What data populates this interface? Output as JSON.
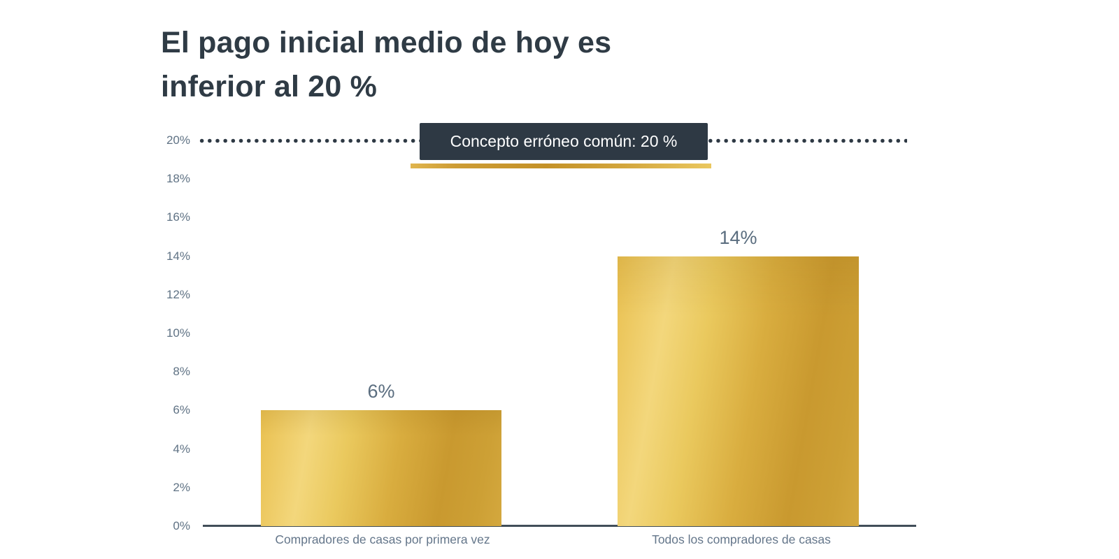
{
  "title": {
    "line1": "El pago inicial medio de hoy es",
    "line2": "inferior al 20 %"
  },
  "annotation": {
    "label": "Concepto erróneo común: 20 %"
  },
  "chart_data": {
    "type": "bar",
    "title": "El pago inicial medio de hoy es inferior al 20 %",
    "categories": [
      "Compradores de casas por primera vez",
      "Todos los compradores de casas"
    ],
    "values": [
      6,
      14
    ],
    "value_labels": [
      "6%",
      "14%"
    ],
    "xlabel": "",
    "ylabel": "",
    "ylim": [
      0,
      20
    ],
    "ytick_step": 2,
    "yticks": [
      "0%",
      "2%",
      "4%",
      "6%",
      "8%",
      "10%",
      "12%",
      "14%",
      "16%",
      "18%",
      "20%"
    ],
    "grid": false,
    "legend": "none",
    "reference_line": {
      "value": 20,
      "style": "dotted",
      "label": "Concepto erróneo común: 20 %"
    },
    "colors": {
      "bar_gold_light": "#f3d77c",
      "bar_gold_dark": "#c9992f",
      "title_text": "#2f3b45",
      "axis_text": "#5f7284",
      "dotted_line": "#2e3944",
      "tooltip_bg": "#2e3944",
      "tooltip_text": "#ffffff",
      "axis_line": "#414e59",
      "underline_gold": "#d2a53c"
    }
  }
}
